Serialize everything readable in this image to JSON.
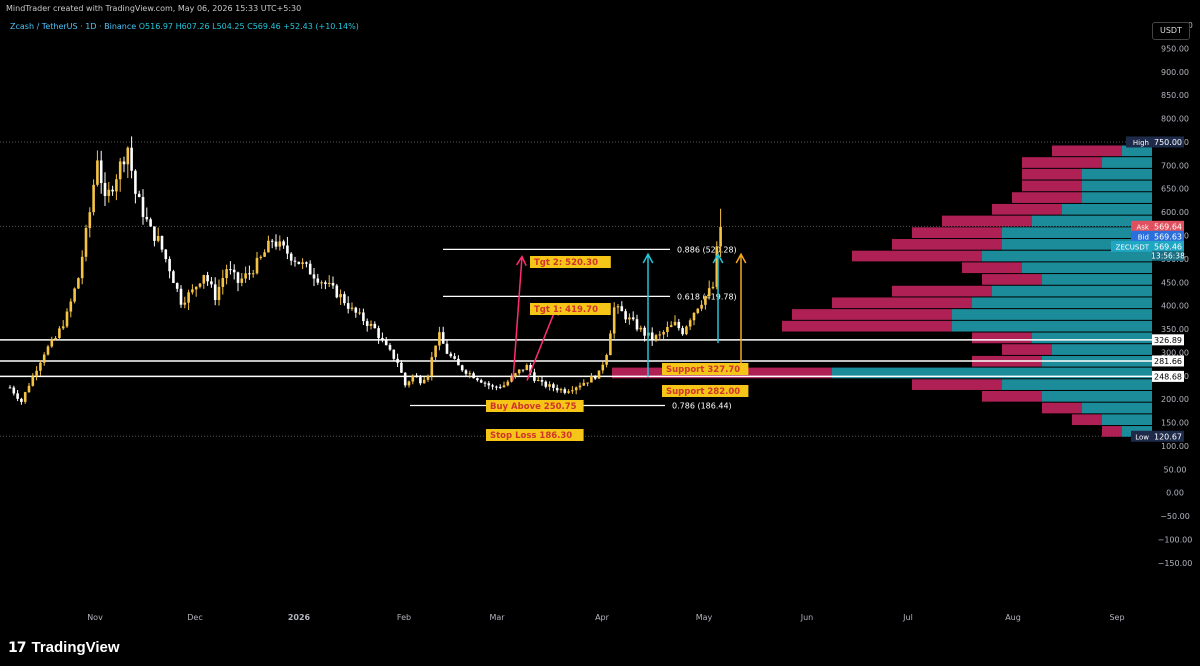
{
  "header": {
    "credit": "MindTrader created with TradingView.com, May 06, 2026 15:33 UTC+5:30",
    "symbol": "Zcash / TetherUS · 1D · Binance",
    "ohlc": "O516.97  H607.26  L504.25  C569.46  +52.43 (+10.14%)"
  },
  "currency_button": "USDT",
  "footer": {
    "logo_mark": "17",
    "logo_text": "TradingView"
  },
  "colors": {
    "up": "#f6c445",
    "down": "#ffffff",
    "accent_cyan": "#26c6da",
    "pink": "#ff2d6f",
    "orange": "#f5a623",
    "profile_pink": "#c2245e",
    "profile_teal": "#1f9bab"
  },
  "chart_data": {
    "type": "candlestick",
    "x_tick_labels": [
      "Nov",
      "Dec",
      "2026",
      "Feb",
      "Mar",
      "Apr",
      "May",
      "Jun",
      "Jul",
      "Aug",
      "Sep"
    ],
    "y_tick_labels": [
      "1,000.00",
      "950.00",
      "900.00",
      "850.00",
      "800.00",
      "750.00",
      "700.00",
      "650.00",
      "600.00",
      "550.00",
      "500.00",
      "450.00",
      "400.00",
      "350.00",
      "300.00",
      "250.00",
      "200.00",
      "150.00",
      "100.00",
      "50.00",
      "0.00",
      "−50.00",
      "−100.00",
      "−150.00"
    ],
    "ylim": [
      -165,
      1040
    ],
    "price_path": [
      [
        0,
        225
      ],
      [
        3,
        195
      ],
      [
        6,
        250
      ],
      [
        9,
        300
      ],
      [
        12,
        330
      ],
      [
        15,
        380
      ],
      [
        18,
        460
      ],
      [
        21,
        600
      ],
      [
        23,
        720
      ],
      [
        25,
        620
      ],
      [
        27,
        660
      ],
      [
        29,
        700
      ],
      [
        31,
        740
      ],
      [
        33,
        640
      ],
      [
        35,
        600
      ],
      [
        37,
        560
      ],
      [
        39,
        540
      ],
      [
        42,
        480
      ],
      [
        45,
        410
      ],
      [
        48,
        430
      ],
      [
        51,
        470
      ],
      [
        54,
        420
      ],
      [
        57,
        480
      ],
      [
        60,
        450
      ],
      [
        63,
        470
      ],
      [
        66,
        500
      ],
      [
        69,
        540
      ],
      [
        72,
        520
      ],
      [
        75,
        500
      ],
      [
        78,
        480
      ],
      [
        81,
        460
      ],
      [
        84,
        440
      ],
      [
        87,
        420
      ],
      [
        90,
        390
      ],
      [
        93,
        370
      ],
      [
        96,
        350
      ],
      [
        99,
        310
      ],
      [
        102,
        280
      ],
      [
        104,
        230
      ],
      [
        106,
        250
      ],
      [
        108,
        240
      ],
      [
        110,
        255
      ],
      [
        112,
        320
      ],
      [
        113,
        335
      ],
      [
        115,
        300
      ],
      [
        118,
        270
      ],
      [
        121,
        255
      ],
      [
        124,
        240
      ],
      [
        127,
        225
      ],
      [
        130,
        230
      ],
      [
        132,
        245
      ],
      [
        134,
        260
      ],
      [
        136,
        270
      ],
      [
        138,
        245
      ],
      [
        140,
        232
      ],
      [
        143,
        225
      ],
      [
        146,
        218
      ],
      [
        149,
        228
      ],
      [
        152,
        240
      ],
      [
        155,
        255
      ],
      [
        157,
        300
      ],
      [
        159,
        395
      ],
      [
        161,
        385
      ],
      [
        163,
        370
      ],
      [
        165,
        355
      ],
      [
        167,
        340
      ],
      [
        169,
        330
      ],
      [
        171,
        335
      ],
      [
        173,
        350
      ],
      [
        175,
        360
      ],
      [
        177,
        345
      ],
      [
        179,
        375
      ],
      [
        181,
        400
      ],
      [
        183,
        420
      ],
      [
        185,
        440
      ],
      [
        186,
        516
      ],
      [
        187,
        569
      ]
    ],
    "last_price": 569.46,
    "high": 750.0,
    "low": 120.67,
    "price_labels": [
      {
        "name": "High",
        "value": 750.0,
        "text": "750.00"
      },
      {
        "name": "Ask",
        "value": 569.64,
        "text": "569.64"
      },
      {
        "name": "Bid",
        "value": 569.63,
        "text": "569.63"
      },
      {
        "name": "ZECUSDT",
        "value": 569.46,
        "text": "569.46"
      },
      {
        "name": "",
        "value": 326.89,
        "text": "326.89"
      },
      {
        "name": "",
        "value": 281.66,
        "text": "281.66"
      },
      {
        "name": "",
        "value": 248.68,
        "text": "248.68"
      },
      {
        "name": "Low",
        "value": 120.67,
        "text": "120.67"
      }
    ],
    "countdown": "13:56:38",
    "horizontal_levels": [
      326.89,
      281.66,
      248.68
    ],
    "fib_levels": [
      {
        "label": "0.886 (520.28)",
        "value": 520.28
      },
      {
        "label": "0.618 (419.78)",
        "value": 419.78
      },
      {
        "label": "0.786 (186.44)",
        "value": 186.44
      }
    ],
    "annotations": [
      {
        "text": "Tgt 2: 520.30",
        "value": 520.3
      },
      {
        "text": "Tgt 1: 419.70",
        "value": 419.7
      },
      {
        "text": "Buy Above 250.75",
        "value": 250.75
      },
      {
        "text": "Stop Loss 186.30",
        "value": 186.3
      },
      {
        "text": "Support 327.70",
        "value": 327.7
      },
      {
        "text": "Support 282.00",
        "value": 282.0
      }
    ],
    "volume_profile": [
      [
        730,
        70,
        30
      ],
      [
        705,
        80,
        50
      ],
      [
        680,
        60,
        70
      ],
      [
        655,
        60,
        70
      ],
      [
        630,
        70,
        70
      ],
      [
        605,
        70,
        90
      ],
      [
        580,
        90,
        120
      ],
      [
        555,
        90,
        150
      ],
      [
        530,
        110,
        150
      ],
      [
        505,
        130,
        170
      ],
      [
        480,
        60,
        130
      ],
      [
        455,
        60,
        110
      ],
      [
        430,
        100,
        160
      ],
      [
        405,
        140,
        180
      ],
      [
        380,
        160,
        200
      ],
      [
        355,
        170,
        200
      ],
      [
        330,
        60,
        120
      ],
      [
        305,
        50,
        100
      ],
      [
        280,
        70,
        110
      ],
      [
        255,
        220,
        320
      ],
      [
        230,
        90,
        150
      ],
      [
        205,
        60,
        110
      ],
      [
        180,
        40,
        70
      ],
      [
        155,
        30,
        50
      ],
      [
        130,
        20,
        30
      ]
    ]
  }
}
